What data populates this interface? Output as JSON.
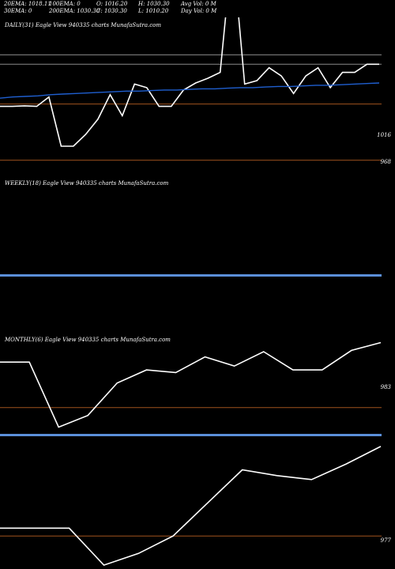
{
  "stats": [
    "20EMA: 1018.11",
    "100EMA: 0",
    "O: 1016.20",
    "H: 1030.30",
    "Avg Vol: 0  M",
    "30EMA: 0",
    "200EMA: 1030.30",
    "C: 1030.30",
    "L: 1010.20",
    "Day Vol: 0  M"
  ],
  "colors": {
    "background": "#000000",
    "price": "#ffffff",
    "ema": "#1f5fd0",
    "level": "#a0521e",
    "gray": "#8a8a8a",
    "divider": "#5b8fd9"
  },
  "chart_data": [
    {
      "type": "line",
      "title": "DAILY(31) Eagle   View  940335 charts MunafaSutra.com",
      "price_labels": [
        "1016",
        "968"
      ],
      "price_range": [
        955,
        1090
      ],
      "series": [
        {
          "values": [
            1014,
            1014,
            1014.5,
            1014,
            1022,
            980,
            980,
            990,
            1003,
            1024,
            1006,
            1033,
            1030,
            1014,
            1014,
            1028,
            1034,
            1038,
            1043,
            1150,
            1033,
            1036,
            1047,
            1040,
            1025,
            1040,
            1047,
            1030,
            1043,
            1043,
            1050,
            1050
          ]
        },
        {
          "values": [
            1021,
            1022,
            1022.5,
            1023,
            1024,
            1024.5,
            1025,
            1025.5,
            1026,
            1026.5,
            1027,
            1027,
            1027.5,
            1028,
            1028,
            1028.5,
            1029,
            1029,
            1029.5,
            1030,
            1030,
            1030.5,
            1031,
            1031,
            1031.5,
            1032,
            1032,
            1032.5,
            1033,
            1033.5,
            1034
          ]
        }
      ],
      "levels": [
        1058,
        1050,
        1016,
        968
      ]
    },
    {
      "type": "line",
      "title": "WEEKLY(18) Eagle   View  940335 charts MunafaSutra.com"
    },
    {
      "type": "line",
      "title": "MONTHLY(6) Eagle   View  940335 charts MunafaSutra.com",
      "price_labels": [
        "983"
      ],
      "price_range": [
        958,
        1040
      ],
      "series": [
        {
          "values": [
            1018,
            1018,
            968,
            977,
            1002,
            1012,
            1010,
            1022,
            1015,
            1026,
            1012,
            1012,
            1027,
            1033
          ]
        }
      ],
      "levels": [
        983
      ]
    },
    {
      "type": "line",
      "title": "",
      "price_labels": [
        "977"
      ],
      "price_range": [
        960,
        1025
      ],
      "series": [
        {
          "values": [
            981,
            981,
            981,
            962,
            968,
            977,
            994,
            1011,
            1008,
            1006,
            1014,
            1023
          ]
        }
      ],
      "levels": [
        977
      ]
    }
  ]
}
